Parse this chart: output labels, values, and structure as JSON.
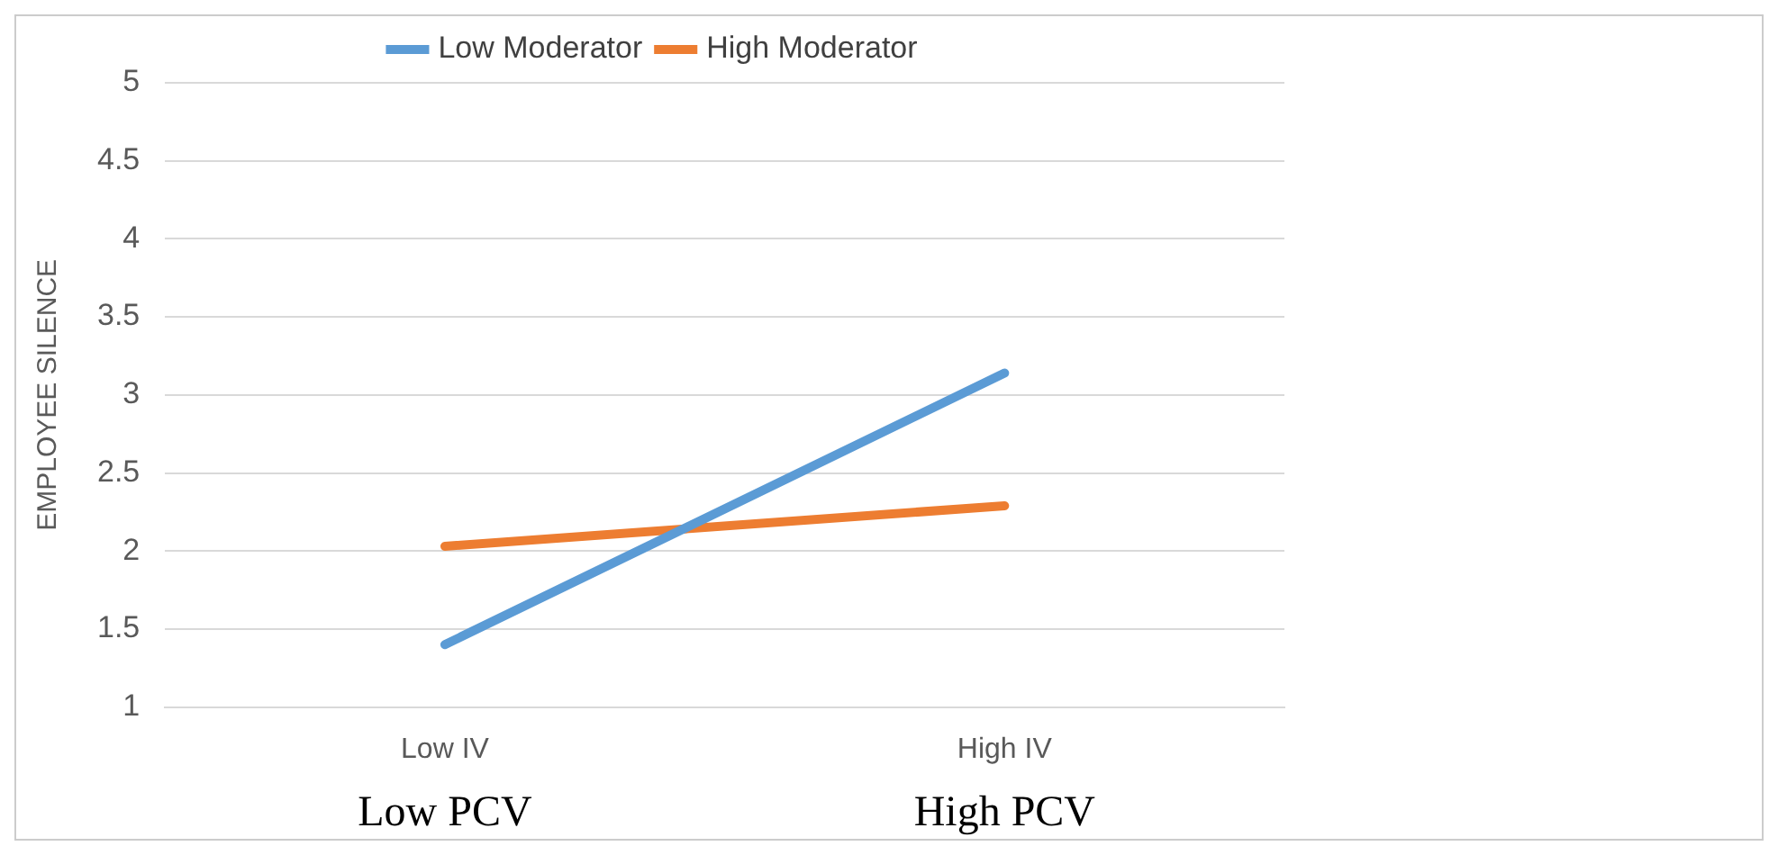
{
  "chart_data": {
    "type": "line",
    "ylabel": "EMPLOYEE SILENCE",
    "categories": [
      "Low IV",
      "High IV"
    ],
    "series": [
      {
        "name": "Low Moderator",
        "color": "#5b9bd5",
        "values": [
          1.4,
          3.14
        ]
      },
      {
        "name": "High Moderator",
        "color": "#ed7d31",
        "values": [
          2.03,
          2.29
        ]
      }
    ],
    "ylim": [
      1,
      5
    ],
    "yticks": [
      1,
      1.5,
      2,
      2.5,
      3,
      3.5,
      4,
      4.5,
      5
    ],
    "grid": "y",
    "legend": "top",
    "marker": "none",
    "annotations": [
      "Low PCV",
      "High PCV"
    ]
  }
}
